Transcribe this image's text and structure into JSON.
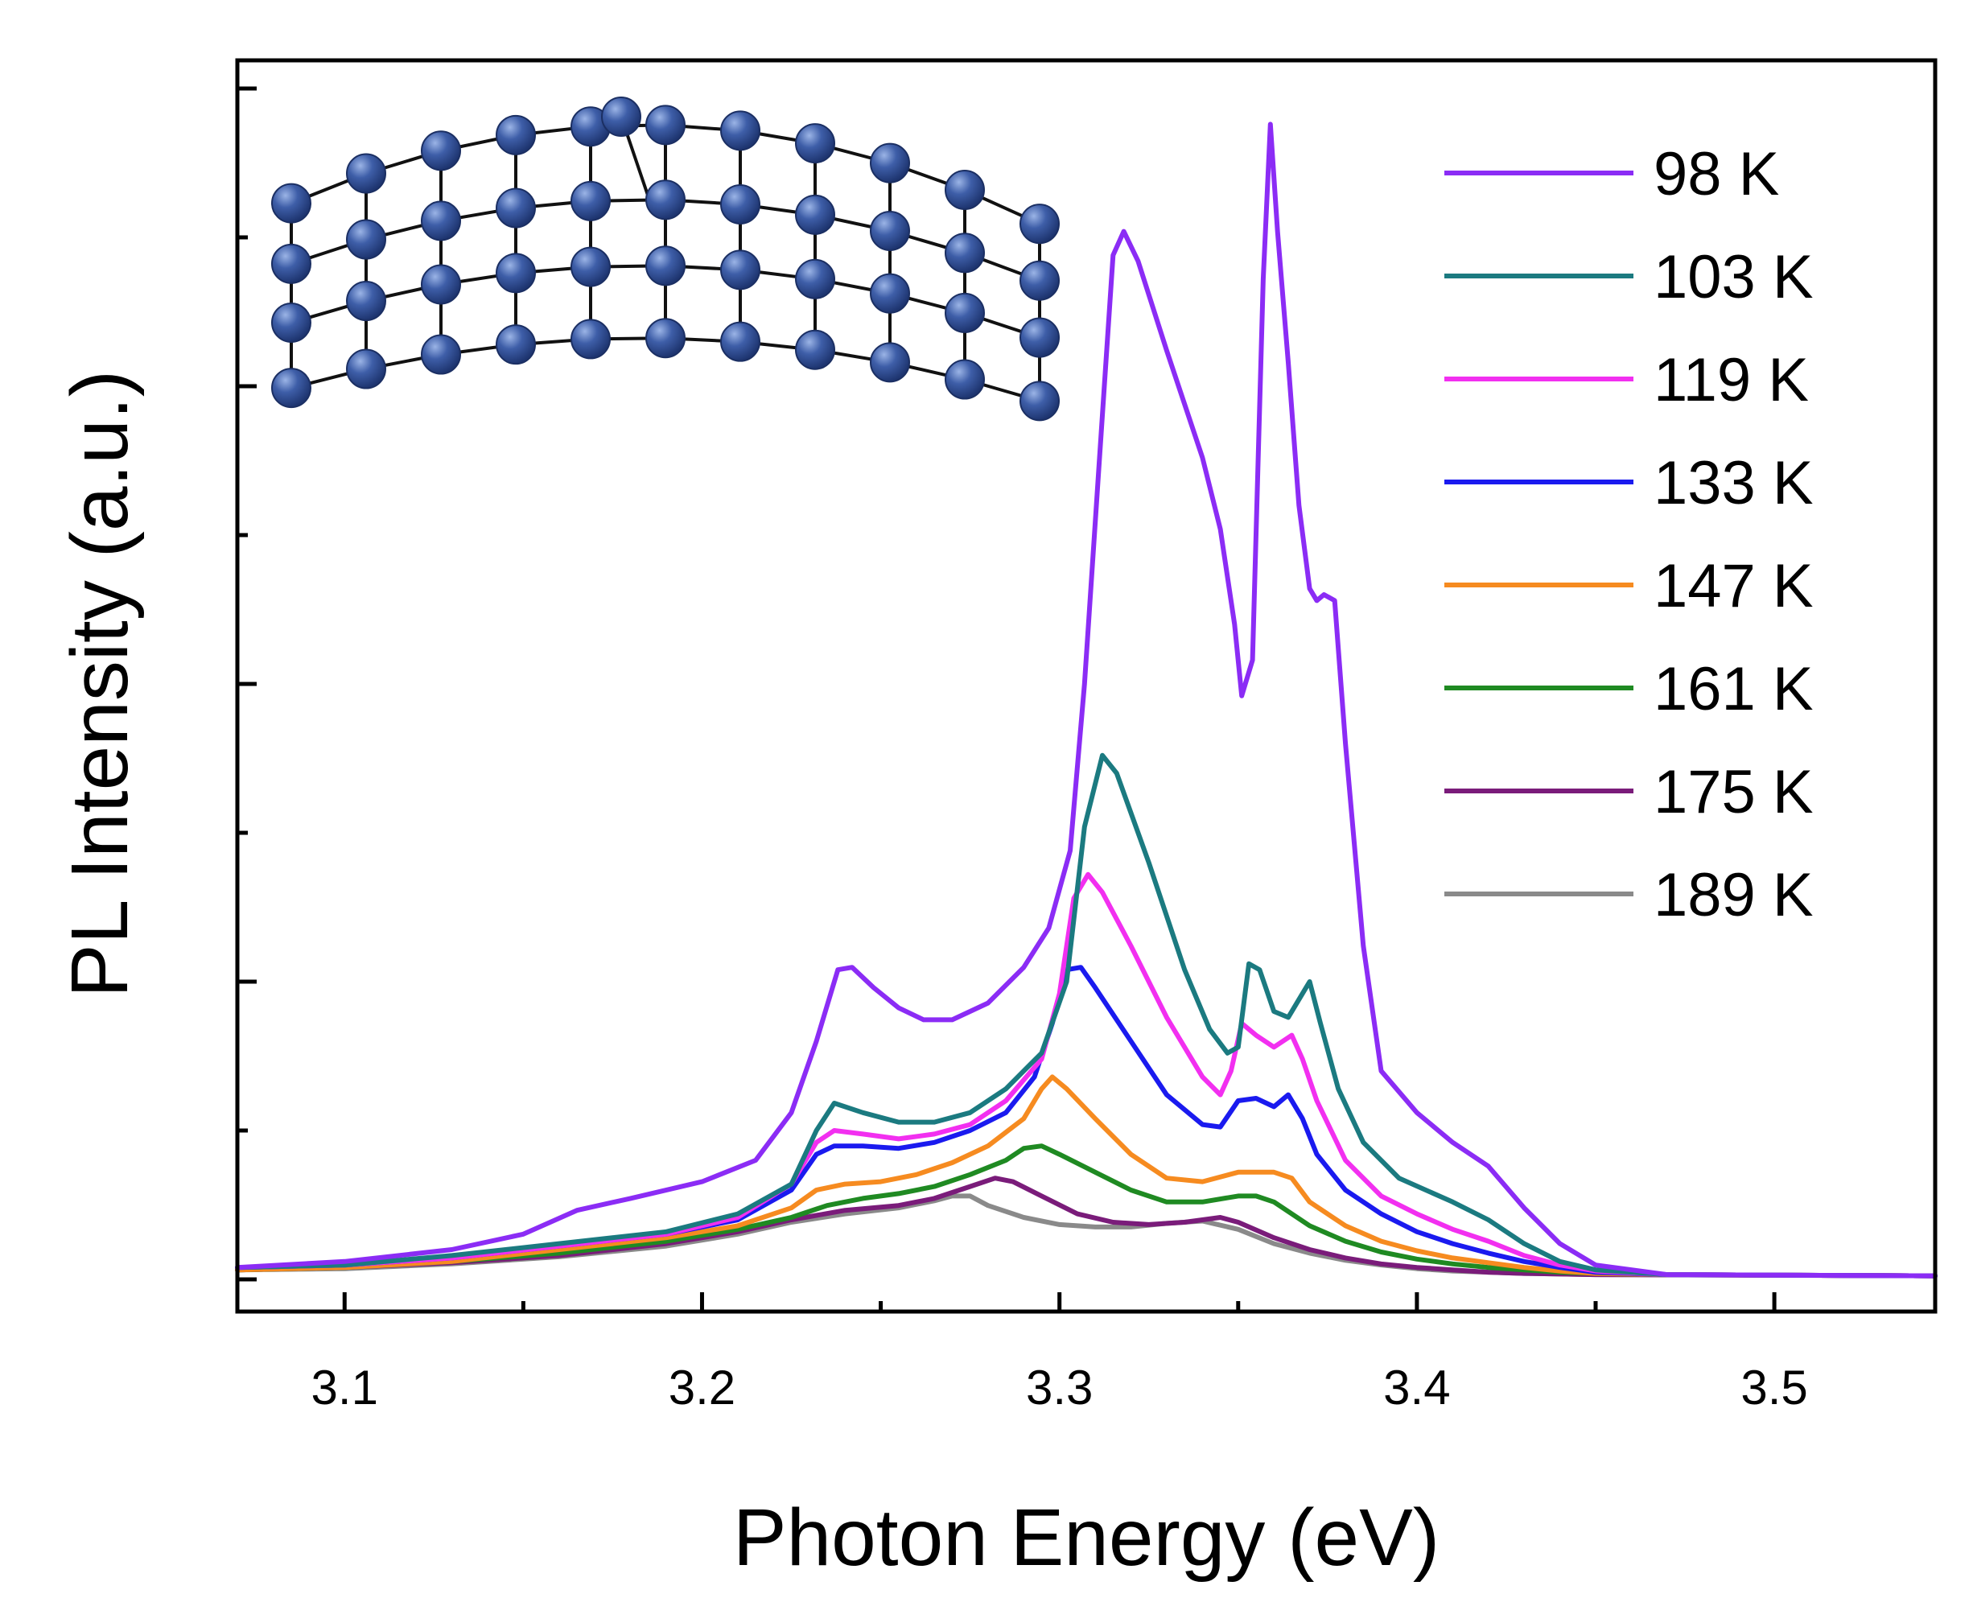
{
  "chart_data": {
    "type": "line",
    "title": "",
    "xlabel": "Photon Energy (eV)",
    "ylabel": "PL Intensity (a.u.)",
    "xlim": [
      3.07,
      3.545
    ],
    "ylim": [
      0,
      1.0
    ],
    "x_ticks": [
      "3.1",
      "3.2",
      "3.3",
      "3.4",
      "3.5"
    ],
    "y_tick_labels_shown": false,
    "grid": false,
    "legend_position": "top-right",
    "inset": "bent-crystal-lattice-illustration",
    "series": [
      {
        "name": "98 K",
        "color": "#8b2cf5",
        "points": [
          [
            3.07,
            0.01
          ],
          [
            3.1,
            0.015
          ],
          [
            3.13,
            0.025
          ],
          [
            3.15,
            0.038
          ],
          [
            3.165,
            0.058
          ],
          [
            3.18,
            0.068
          ],
          [
            3.2,
            0.082
          ],
          [
            3.215,
            0.1
          ],
          [
            3.225,
            0.14
          ],
          [
            3.232,
            0.2
          ],
          [
            3.238,
            0.26
          ],
          [
            3.242,
            0.262
          ],
          [
            3.248,
            0.245
          ],
          [
            3.255,
            0.228
          ],
          [
            3.262,
            0.218
          ],
          [
            3.27,
            0.218
          ],
          [
            3.28,
            0.232
          ],
          [
            3.29,
            0.262
          ],
          [
            3.297,
            0.295
          ],
          [
            3.303,
            0.36
          ],
          [
            3.307,
            0.5
          ],
          [
            3.311,
            0.68
          ],
          [
            3.315,
            0.86
          ],
          [
            3.318,
            0.88
          ],
          [
            3.322,
            0.855
          ],
          [
            3.33,
            0.78
          ],
          [
            3.34,
            0.69
          ],
          [
            3.345,
            0.63
          ],
          [
            3.349,
            0.55
          ],
          [
            3.351,
            0.49
          ],
          [
            3.354,
            0.52
          ],
          [
            3.357,
            0.84
          ],
          [
            3.359,
            0.97
          ],
          [
            3.361,
            0.88
          ],
          [
            3.364,
            0.77
          ],
          [
            3.367,
            0.65
          ],
          [
            3.37,
            0.58
          ],
          [
            3.372,
            0.57
          ],
          [
            3.374,
            0.575
          ],
          [
            3.377,
            0.57
          ],
          [
            3.38,
            0.45
          ],
          [
            3.385,
            0.28
          ],
          [
            3.39,
            0.175
          ],
          [
            3.4,
            0.14
          ],
          [
            3.41,
            0.115
          ],
          [
            3.42,
            0.095
          ],
          [
            3.43,
            0.06
          ],
          [
            3.44,
            0.03
          ],
          [
            3.45,
            0.012
          ],
          [
            3.47,
            0.004
          ],
          [
            3.545,
            0.003
          ]
        ]
      },
      {
        "name": "103 K",
        "color": "#1b7a80",
        "points": [
          [
            3.07,
            0.01
          ],
          [
            3.1,
            0.012
          ],
          [
            3.13,
            0.02
          ],
          [
            3.16,
            0.03
          ],
          [
            3.19,
            0.04
          ],
          [
            3.21,
            0.055
          ],
          [
            3.225,
            0.08
          ],
          [
            3.232,
            0.125
          ],
          [
            3.237,
            0.148
          ],
          [
            3.245,
            0.14
          ],
          [
            3.255,
            0.132
          ],
          [
            3.265,
            0.132
          ],
          [
            3.275,
            0.14
          ],
          [
            3.285,
            0.16
          ],
          [
            3.295,
            0.19
          ],
          [
            3.302,
            0.25
          ],
          [
            3.307,
            0.38
          ],
          [
            3.312,
            0.44
          ],
          [
            3.316,
            0.425
          ],
          [
            3.325,
            0.35
          ],
          [
            3.335,
            0.26
          ],
          [
            3.342,
            0.21
          ],
          [
            3.347,
            0.19
          ],
          [
            3.35,
            0.195
          ],
          [
            3.353,
            0.265
          ],
          [
            3.356,
            0.26
          ],
          [
            3.36,
            0.225
          ],
          [
            3.364,
            0.22
          ],
          [
            3.368,
            0.24
          ],
          [
            3.37,
            0.25
          ],
          [
            3.373,
            0.215
          ],
          [
            3.378,
            0.16
          ],
          [
            3.385,
            0.115
          ],
          [
            3.395,
            0.085
          ],
          [
            3.41,
            0.065
          ],
          [
            3.42,
            0.05
          ],
          [
            3.43,
            0.03
          ],
          [
            3.44,
            0.015
          ],
          [
            3.45,
            0.008
          ],
          [
            3.47,
            0.004
          ],
          [
            3.545,
            0.003
          ]
        ]
      },
      {
        "name": "119 K",
        "color": "#f22ff0",
        "points": [
          [
            3.07,
            0.01
          ],
          [
            3.1,
            0.012
          ],
          [
            3.13,
            0.018
          ],
          [
            3.16,
            0.028
          ],
          [
            3.19,
            0.038
          ],
          [
            3.21,
            0.052
          ],
          [
            3.225,
            0.08
          ],
          [
            3.232,
            0.115
          ],
          [
            3.237,
            0.125
          ],
          [
            3.245,
            0.122
          ],
          [
            3.255,
            0.118
          ],
          [
            3.265,
            0.122
          ],
          [
            3.275,
            0.13
          ],
          [
            3.285,
            0.15
          ],
          [
            3.295,
            0.185
          ],
          [
            3.3,
            0.24
          ],
          [
            3.304,
            0.32
          ],
          [
            3.308,
            0.34
          ],
          [
            3.312,
            0.325
          ],
          [
            3.32,
            0.28
          ],
          [
            3.33,
            0.22
          ],
          [
            3.34,
            0.17
          ],
          [
            3.345,
            0.155
          ],
          [
            3.348,
            0.175
          ],
          [
            3.351,
            0.215
          ],
          [
            3.355,
            0.205
          ],
          [
            3.36,
            0.195
          ],
          [
            3.365,
            0.205
          ],
          [
            3.368,
            0.185
          ],
          [
            3.372,
            0.15
          ],
          [
            3.38,
            0.1
          ],
          [
            3.39,
            0.07
          ],
          [
            3.4,
            0.055
          ],
          [
            3.41,
            0.042
          ],
          [
            3.42,
            0.032
          ],
          [
            3.43,
            0.02
          ],
          [
            3.44,
            0.012
          ],
          [
            3.45,
            0.007
          ],
          [
            3.47,
            0.004
          ],
          [
            3.545,
            0.003
          ]
        ]
      },
      {
        "name": "133 K",
        "color": "#1a1aef",
        "points": [
          [
            3.07,
            0.01
          ],
          [
            3.1,
            0.012
          ],
          [
            3.13,
            0.018
          ],
          [
            3.16,
            0.028
          ],
          [
            3.19,
            0.038
          ],
          [
            3.21,
            0.05
          ],
          [
            3.225,
            0.075
          ],
          [
            3.232,
            0.105
          ],
          [
            3.237,
            0.112
          ],
          [
            3.245,
            0.112
          ],
          [
            3.255,
            0.11
          ],
          [
            3.265,
            0.115
          ],
          [
            3.275,
            0.125
          ],
          [
            3.285,
            0.14
          ],
          [
            3.293,
            0.17
          ],
          [
            3.298,
            0.215
          ],
          [
            3.302,
            0.26
          ],
          [
            3.306,
            0.262
          ],
          [
            3.31,
            0.245
          ],
          [
            3.32,
            0.2
          ],
          [
            3.33,
            0.155
          ],
          [
            3.34,
            0.13
          ],
          [
            3.345,
            0.128
          ],
          [
            3.35,
            0.15
          ],
          [
            3.355,
            0.152
          ],
          [
            3.36,
            0.145
          ],
          [
            3.364,
            0.155
          ],
          [
            3.368,
            0.135
          ],
          [
            3.372,
            0.105
          ],
          [
            3.38,
            0.075
          ],
          [
            3.39,
            0.055
          ],
          [
            3.4,
            0.04
          ],
          [
            3.41,
            0.03
          ],
          [
            3.42,
            0.022
          ],
          [
            3.43,
            0.015
          ],
          [
            3.44,
            0.01
          ],
          [
            3.45,
            0.006
          ],
          [
            3.47,
            0.004
          ],
          [
            3.545,
            0.003
          ]
        ]
      },
      {
        "name": "147 K",
        "color": "#f68b20",
        "points": [
          [
            3.07,
            0.008
          ],
          [
            3.1,
            0.01
          ],
          [
            3.13,
            0.015
          ],
          [
            3.16,
            0.025
          ],
          [
            3.19,
            0.035
          ],
          [
            3.21,
            0.045
          ],
          [
            3.225,
            0.06
          ],
          [
            3.232,
            0.075
          ],
          [
            3.24,
            0.08
          ],
          [
            3.25,
            0.082
          ],
          [
            3.26,
            0.088
          ],
          [
            3.27,
            0.098
          ],
          [
            3.28,
            0.112
          ],
          [
            3.29,
            0.135
          ],
          [
            3.295,
            0.16
          ],
          [
            3.298,
            0.17
          ],
          [
            3.302,
            0.16
          ],
          [
            3.31,
            0.135
          ],
          [
            3.32,
            0.105
          ],
          [
            3.33,
            0.085
          ],
          [
            3.34,
            0.082
          ],
          [
            3.35,
            0.09
          ],
          [
            3.36,
            0.09
          ],
          [
            3.365,
            0.085
          ],
          [
            3.37,
            0.065
          ],
          [
            3.38,
            0.045
          ],
          [
            3.39,
            0.032
          ],
          [
            3.4,
            0.024
          ],
          [
            3.41,
            0.018
          ],
          [
            3.42,
            0.014
          ],
          [
            3.43,
            0.01
          ],
          [
            3.44,
            0.007
          ],
          [
            3.45,
            0.005
          ],
          [
            3.47,
            0.004
          ],
          [
            3.545,
            0.003
          ]
        ]
      },
      {
        "name": "161 K",
        "color": "#1f8a22",
        "points": [
          [
            3.07,
            0.008
          ],
          [
            3.1,
            0.01
          ],
          [
            3.13,
            0.015
          ],
          [
            3.16,
            0.022
          ],
          [
            3.19,
            0.032
          ],
          [
            3.21,
            0.042
          ],
          [
            3.225,
            0.052
          ],
          [
            3.235,
            0.062
          ],
          [
            3.245,
            0.068
          ],
          [
            3.255,
            0.072
          ],
          [
            3.265,
            0.078
          ],
          [
            3.275,
            0.088
          ],
          [
            3.285,
            0.1
          ],
          [
            3.29,
            0.11
          ],
          [
            3.295,
            0.112
          ],
          [
            3.3,
            0.105
          ],
          [
            3.31,
            0.09
          ],
          [
            3.32,
            0.075
          ],
          [
            3.33,
            0.065
          ],
          [
            3.34,
            0.065
          ],
          [
            3.35,
            0.07
          ],
          [
            3.355,
            0.07
          ],
          [
            3.36,
            0.065
          ],
          [
            3.37,
            0.045
          ],
          [
            3.38,
            0.032
          ],
          [
            3.39,
            0.023
          ],
          [
            3.4,
            0.017
          ],
          [
            3.41,
            0.013
          ],
          [
            3.42,
            0.01
          ],
          [
            3.43,
            0.008
          ],
          [
            3.44,
            0.006
          ],
          [
            3.45,
            0.005
          ],
          [
            3.47,
            0.004
          ],
          [
            3.545,
            0.003
          ]
        ]
      },
      {
        "name": "175 K",
        "color": "#7a1c7a",
        "points": [
          [
            3.07,
            0.008
          ],
          [
            3.1,
            0.01
          ],
          [
            3.13,
            0.014
          ],
          [
            3.16,
            0.02
          ],
          [
            3.19,
            0.03
          ],
          [
            3.21,
            0.04
          ],
          [
            3.225,
            0.05
          ],
          [
            3.24,
            0.058
          ],
          [
            3.255,
            0.062
          ],
          [
            3.265,
            0.068
          ],
          [
            3.275,
            0.078
          ],
          [
            3.282,
            0.085
          ],
          [
            3.287,
            0.082
          ],
          [
            3.295,
            0.07
          ],
          [
            3.305,
            0.055
          ],
          [
            3.315,
            0.048
          ],
          [
            3.325,
            0.046
          ],
          [
            3.335,
            0.048
          ],
          [
            3.345,
            0.052
          ],
          [
            3.35,
            0.048
          ],
          [
            3.36,
            0.035
          ],
          [
            3.37,
            0.025
          ],
          [
            3.38,
            0.018
          ],
          [
            3.39,
            0.013
          ],
          [
            3.4,
            0.01
          ],
          [
            3.41,
            0.008
          ],
          [
            3.42,
            0.006
          ],
          [
            3.43,
            0.005
          ],
          [
            3.45,
            0.004
          ],
          [
            3.545,
            0.003
          ]
        ]
      },
      {
        "name": "189 K",
        "color": "#8a8a8a",
        "points": [
          [
            3.07,
            0.008
          ],
          [
            3.1,
            0.009
          ],
          [
            3.13,
            0.013
          ],
          [
            3.16,
            0.019
          ],
          [
            3.19,
            0.028
          ],
          [
            3.21,
            0.038
          ],
          [
            3.225,
            0.048
          ],
          [
            3.24,
            0.055
          ],
          [
            3.255,
            0.06
          ],
          [
            3.265,
            0.066
          ],
          [
            3.27,
            0.07
          ],
          [
            3.275,
            0.07
          ],
          [
            3.28,
            0.062
          ],
          [
            3.29,
            0.052
          ],
          [
            3.3,
            0.046
          ],
          [
            3.31,
            0.044
          ],
          [
            3.32,
            0.044
          ],
          [
            3.33,
            0.047
          ],
          [
            3.34,
            0.049
          ],
          [
            3.35,
            0.042
          ],
          [
            3.36,
            0.03
          ],
          [
            3.37,
            0.022
          ],
          [
            3.38,
            0.016
          ],
          [
            3.39,
            0.012
          ],
          [
            3.4,
            0.009
          ],
          [
            3.41,
            0.007
          ],
          [
            3.42,
            0.006
          ],
          [
            3.43,
            0.005
          ],
          [
            3.45,
            0.004
          ],
          [
            3.545,
            0.003
          ]
        ]
      }
    ]
  }
}
